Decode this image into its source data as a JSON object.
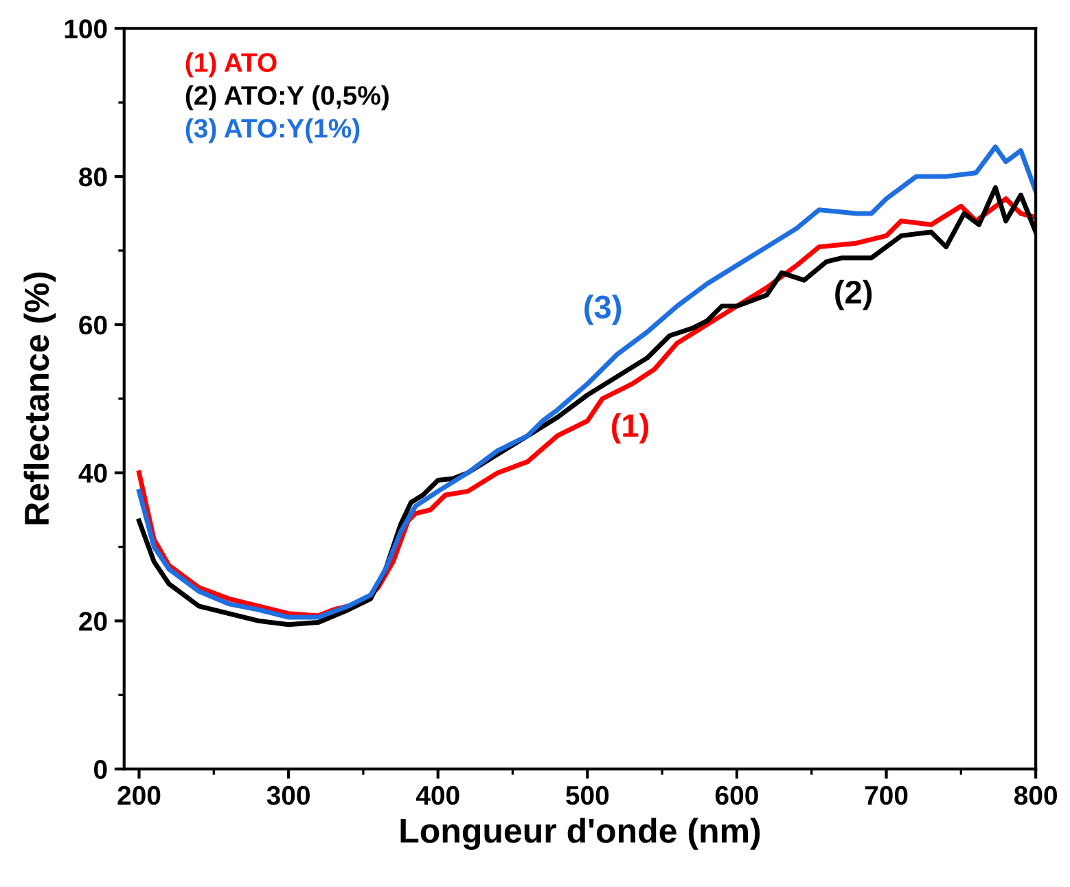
{
  "chart_data": {
    "type": "line",
    "xlabel": "Longueur d'onde (nm)",
    "ylabel": "Reflectance (%)",
    "xlim": [
      190,
      800
    ],
    "xticks": [
      200,
      300,
      400,
      500,
      600,
      700,
      800
    ],
    "ylim": [
      0,
      100
    ],
    "yticks": [
      0,
      20,
      40,
      60,
      80,
      100
    ],
    "grid": false,
    "legend": "top left",
    "marker": "none",
    "line_style": "solid",
    "series": [
      {
        "name": "(1) ATO",
        "color": "#ff0000",
        "x": [
          200,
          210,
          220,
          240,
          260,
          280,
          300,
          320,
          330,
          350,
          360,
          370,
          380,
          385,
          395,
          405,
          420,
          440,
          460,
          480,
          500,
          510,
          530,
          545,
          560,
          580,
          600,
          620,
          640,
          655,
          680,
          700,
          710,
          730,
          750,
          760,
          780,
          790,
          800
        ],
        "values": [
          40,
          31,
          27.5,
          24.5,
          23,
          22,
          21,
          20.7,
          21.5,
          22.5,
          24.5,
          28,
          33.5,
          34.5,
          35,
          37,
          37.5,
          40,
          41.5,
          45,
          47,
          50,
          52,
          54,
          57.5,
          60,
          62.5,
          65,
          68,
          70.5,
          71,
          72,
          74,
          73.5,
          76,
          74,
          77,
          75,
          74.5
        ]
      },
      {
        "name": "(2) ATO:Y (0,5%)",
        "color": "#000000",
        "x": [
          200,
          210,
          220,
          240,
          260,
          280,
          300,
          320,
          340,
          355,
          365,
          375,
          382,
          390,
          400,
          410,
          420,
          440,
          460,
          480,
          500,
          520,
          540,
          555,
          570,
          580,
          590,
          600,
          620,
          630,
          645,
          660,
          670,
          690,
          710,
          730,
          740,
          752,
          762,
          773,
          780,
          790,
          800
        ],
        "values": [
          33.5,
          28,
          25,
          22,
          21,
          20,
          19.5,
          19.8,
          21.5,
          23,
          27,
          33,
          36,
          37,
          39,
          39.2,
          40,
          42.5,
          45,
          47.5,
          50.5,
          53,
          55.5,
          58.5,
          59.5,
          60.5,
          62.5,
          62.5,
          64,
          67,
          66,
          68.5,
          69,
          69,
          72,
          72.5,
          70.5,
          75,
          73.5,
          78.5,
          74,
          77.5,
          72.5
        ]
      },
      {
        "name": "(3) ATO:Y(1%)",
        "color": "#1f6fe0",
        "x": [
          200,
          210,
          220,
          240,
          260,
          280,
          300,
          320,
          340,
          355,
          365,
          375,
          385,
          400,
          420,
          440,
          460,
          470,
          480,
          500,
          520,
          540,
          560,
          580,
          600,
          620,
          640,
          655,
          680,
          690,
          700,
          720,
          740,
          760,
          773,
          780,
          790,
          800
        ],
        "values": [
          37.5,
          30,
          27,
          24,
          22.3,
          21.5,
          20.5,
          20.5,
          22,
          23.5,
          27,
          32,
          35.5,
          37.5,
          40,
          43,
          45,
          47,
          48.5,
          52,
          56,
          59,
          62.5,
          65.5,
          68,
          70.5,
          73,
          75.5,
          75,
          75,
          77,
          80,
          80,
          80.5,
          84,
          82,
          83.5,
          78
        ]
      }
    ],
    "annotations": [
      "(1)",
      "(2)",
      "(3)"
    ]
  }
}
